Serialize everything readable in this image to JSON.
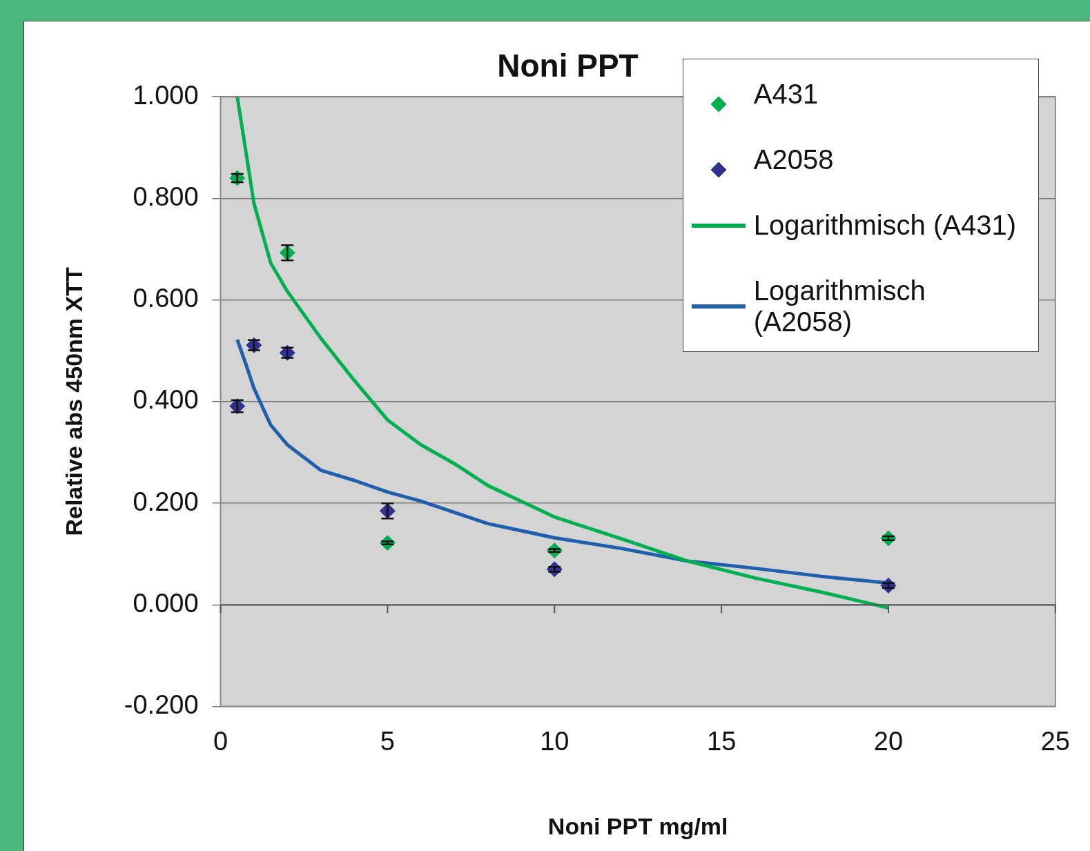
{
  "chart_data": {
    "type": "scatter",
    "title": "Noni PPT",
    "xlabel": "Noni PPT mg/ml",
    "ylabel": "Relative abs 450nm XTT",
    "xlim": [
      0,
      25
    ],
    "xticks": [
      0,
      5,
      10,
      15,
      20,
      25
    ],
    "ylim": [
      -0.2,
      1.0
    ],
    "yticks": [
      {
        "value": -0.2,
        "label": "-0.200"
      },
      {
        "value": 0,
        "label": "0.000"
      },
      {
        "value": 0.2,
        "label": "0.200"
      },
      {
        "value": 0.4,
        "label": "0.400"
      },
      {
        "value": 0.6,
        "label": "0.600"
      },
      {
        "value": 0.8,
        "label": "0.800"
      },
      {
        "value": 1.0,
        "label": "1.000"
      }
    ],
    "grid": "y",
    "legend": "top right",
    "marker": "diamond",
    "series": [
      {
        "name": "A431",
        "color": "#00b050",
        "x": [
          0.5,
          2,
          5,
          10,
          20
        ],
        "values": [
          0.84,
          0.693,
          0.122,
          0.107,
          0.131
        ],
        "errors": [
          0.008,
          0.015,
          0.003,
          0.003,
          0.004
        ]
      },
      {
        "name": "A2058",
        "color": "#2e3192",
        "x": [
          0.5,
          1,
          2,
          5,
          10,
          20
        ],
        "values": [
          0.391,
          0.511,
          0.496,
          0.185,
          0.07,
          0.038
        ],
        "errors": [
          0.012,
          0.01,
          0.01,
          0.015,
          0.005,
          0.005
        ]
      },
      {
        "name": "Logarithmisch (A431)",
        "type": "line",
        "marker": "none",
        "color": "#00b050",
        "x": [
          0.5,
          0.75,
          1,
          1.5,
          2,
          3,
          4,
          5,
          6,
          7,
          8,
          9,
          10,
          12,
          14,
          16,
          18,
          20
        ],
        "values": [
          1.0,
          0.895,
          0.79,
          0.673,
          0.617,
          0.525,
          0.442,
          0.364,
          0.315,
          0.278,
          0.235,
          0.204,
          0.173,
          0.13,
          0.086,
          0.053,
          0.025,
          -0.006
        ]
      },
      {
        "name": "Logarithmisch (A2058)",
        "type": "line",
        "marker": "none",
        "color": "#1f5fae",
        "x": [
          0.5,
          0.75,
          1,
          1.5,
          2,
          3,
          4,
          5,
          6,
          8,
          10,
          12,
          14,
          16,
          18,
          20
        ],
        "values": [
          0.522,
          0.475,
          0.426,
          0.354,
          0.315,
          0.265,
          0.245,
          0.222,
          0.204,
          0.16,
          0.132,
          0.111,
          0.086,
          0.072,
          0.056,
          0.043
        ]
      }
    ]
  }
}
